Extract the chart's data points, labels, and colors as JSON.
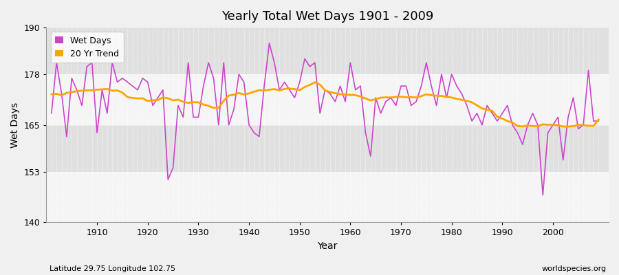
{
  "title": "Yearly Total Wet Days 1901 - 2009",
  "xlabel": "Year",
  "ylabel": "Wet Days",
  "subtitle": "Latitude 29.75 Longitude 102.75",
  "watermark": "worldspecies.org",
  "ylim": [
    140,
    190
  ],
  "yticks": [
    140,
    153,
    165,
    178,
    190
  ],
  "line_color": "#CC44CC",
  "trend_color": "#FFA500",
  "fig_bg_color": "#F0F0F0",
  "plot_bg_color": "#F5F5F5",
  "band_color": "#E0E0E0",
  "years": [
    1901,
    1902,
    1903,
    1904,
    1905,
    1906,
    1907,
    1908,
    1909,
    1910,
    1911,
    1912,
    1913,
    1914,
    1915,
    1916,
    1917,
    1918,
    1919,
    1920,
    1921,
    1922,
    1923,
    1924,
    1925,
    1926,
    1927,
    1928,
    1929,
    1930,
    1931,
    1932,
    1933,
    1934,
    1935,
    1936,
    1937,
    1938,
    1939,
    1940,
    1941,
    1942,
    1943,
    1944,
    1945,
    1946,
    1947,
    1948,
    1949,
    1950,
    1951,
    1952,
    1953,
    1954,
    1955,
    1956,
    1957,
    1958,
    1959,
    1960,
    1961,
    1962,
    1963,
    1964,
    1965,
    1966,
    1967,
    1968,
    1969,
    1970,
    1971,
    1972,
    1973,
    1974,
    1975,
    1976,
    1977,
    1978,
    1979,
    1980,
    1981,
    1982,
    1983,
    1984,
    1985,
    1986,
    1987,
    1988,
    1989,
    1990,
    1991,
    1992,
    1993,
    1994,
    1995,
    1996,
    1997,
    1998,
    1999,
    2000,
    2001,
    2002,
    2003,
    2004,
    2005,
    2006,
    2007,
    2008,
    2009
  ],
  "wet_days": [
    168,
    181,
    173,
    162,
    177,
    174,
    170,
    180,
    181,
    163,
    174,
    168,
    181,
    176,
    177,
    176,
    175,
    174,
    177,
    176,
    170,
    172,
    174,
    151,
    154,
    170,
    167,
    181,
    167,
    167,
    175,
    181,
    177,
    165,
    181,
    165,
    169,
    178,
    176,
    165,
    163,
    162,
    175,
    186,
    181,
    174,
    176,
    174,
    172,
    176,
    182,
    180,
    181,
    168,
    174,
    173,
    171,
    175,
    171,
    181,
    174,
    175,
    163,
    157,
    172,
    168,
    171,
    172,
    170,
    175,
    175,
    170,
    171,
    175,
    181,
    175,
    170,
    178,
    172,
    178,
    175,
    173,
    170,
    166,
    168,
    165,
    170,
    168,
    166,
    168,
    170,
    165,
    163,
    160,
    165,
    168,
    165,
    147,
    163,
    165,
    167,
    156,
    167,
    172,
    164,
    165,
    179,
    166,
    166
  ]
}
